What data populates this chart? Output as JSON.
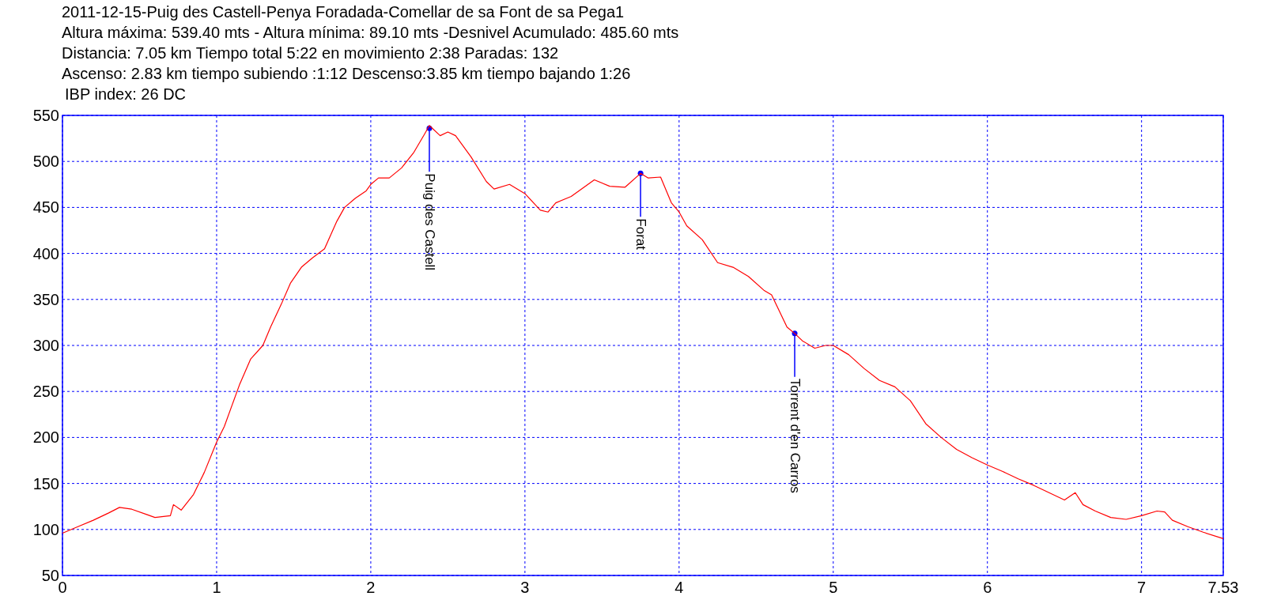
{
  "chart_data": {
    "type": "line",
    "title": "2011-12-15-Puig des Castell-Penya Foradada-Comellar de sa Font de sa Pega1",
    "annotations": [
      "Altura máxima: 539.40 mts - Altura mínima: 89.10 mts -Desnivel Acumulado: 485.60 mts",
      "Distancia: 7.05 km  Tiempo total 5:22  en movimiento 2:38 Paradas: 132",
      "Ascenso: 2.83 km  tiempo subiendo :1:12  Descenso:3.85 km tiempo bajando 1:26",
      "IBP index: 26 DC",
      {
        "text": "Puig des Castell",
        "x": 2.38,
        "y": 536
      },
      {
        "text": "Forat",
        "x": 3.75,
        "y": 487
      },
      {
        "text": "Torrent d'en Carros",
        "x": 4.75,
        "y": 313
      }
    ],
    "x": [
      0,
      0.1,
      0.2,
      0.3,
      0.37,
      0.45,
      0.55,
      0.6,
      0.7,
      0.72,
      0.77,
      0.85,
      0.92,
      1.0,
      1.05,
      1.1,
      1.15,
      1.22,
      1.3,
      1.35,
      1.42,
      1.48,
      1.55,
      1.62,
      1.7,
      1.78,
      1.83,
      1.9,
      1.97,
      2.0,
      2.05,
      2.12,
      2.2,
      2.28,
      2.35,
      2.38,
      2.45,
      2.5,
      2.55,
      2.65,
      2.75,
      2.8,
      2.9,
      3.0,
      3.1,
      3.15,
      3.2,
      3.3,
      3.45,
      3.55,
      3.65,
      3.75,
      3.8,
      3.88,
      3.95,
      4.0,
      4.05,
      4.15,
      4.25,
      4.35,
      4.45,
      4.55,
      4.6,
      4.7,
      4.75,
      4.8,
      4.88,
      4.95,
      5.0,
      5.1,
      5.2,
      5.3,
      5.4,
      5.5,
      5.6,
      5.7,
      5.8,
      5.9,
      6.0,
      6.1,
      6.2,
      6.3,
      6.4,
      6.5,
      6.57,
      6.62,
      6.7,
      6.8,
      6.9,
      7.0,
      7.1,
      7.15,
      7.2,
      7.3,
      7.4,
      7.53
    ],
    "series": [
      {
        "color": "#ff0000",
        "values": [
          96,
          103,
          110,
          118,
          124,
          122,
          116,
          113,
          115,
          127,
          121,
          138,
          162,
          195,
          212,
          235,
          258,
          285,
          300,
          320,
          345,
          368,
          385,
          395,
          405,
          435,
          450,
          460,
          468,
          475,
          482,
          482,
          493,
          510,
          530,
          539,
          528,
          532,
          528,
          505,
          478,
          470,
          475,
          465,
          447,
          445,
          455,
          462,
          480,
          473,
          472,
          487,
          482,
          483,
          455,
          445,
          430,
          415,
          390,
          385,
          375,
          360,
          355,
          320,
          313,
          305,
          297,
          300,
          300,
          290,
          275,
          262,
          255,
          240,
          215,
          200,
          187,
          178,
          170,
          163,
          155,
          148,
          140,
          132,
          140,
          127,
          120,
          113,
          111,
          115,
          120,
          119,
          110,
          103,
          97,
          90
        ]
      }
    ],
    "xlim": [
      0,
      7.53
    ],
    "xticks": [
      0,
      1,
      2,
      3,
      4,
      5,
      6,
      7,
      7.53
    ],
    "ylim": [
      50,
      550
    ],
    "yticks": [
      50,
      100,
      150,
      200,
      250,
      300,
      350,
      400,
      450,
      500,
      550
    ],
    "grid": true,
    "marker": "none",
    "line_style": "solid"
  }
}
